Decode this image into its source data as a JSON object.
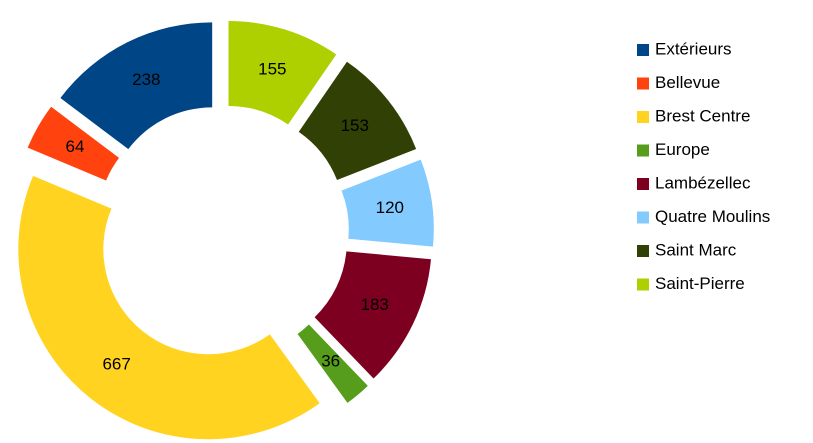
{
  "chart_data": {
    "type": "donut",
    "categories": [
      "Extérieurs",
      "Bellevue",
      "Brest Centre",
      "Europe",
      "Lambézellec",
      "Quatre Moulins",
      "Saint Marc",
      "Saint-Pierre"
    ],
    "values": [
      238,
      64,
      667,
      36,
      183,
      120,
      153,
      155
    ],
    "colors": [
      "#004586",
      "#ff420e",
      "#ffd320",
      "#579d1c",
      "#7e0021",
      "#83caff",
      "#314004",
      "#aecf00"
    ],
    "legend": "right"
  }
}
